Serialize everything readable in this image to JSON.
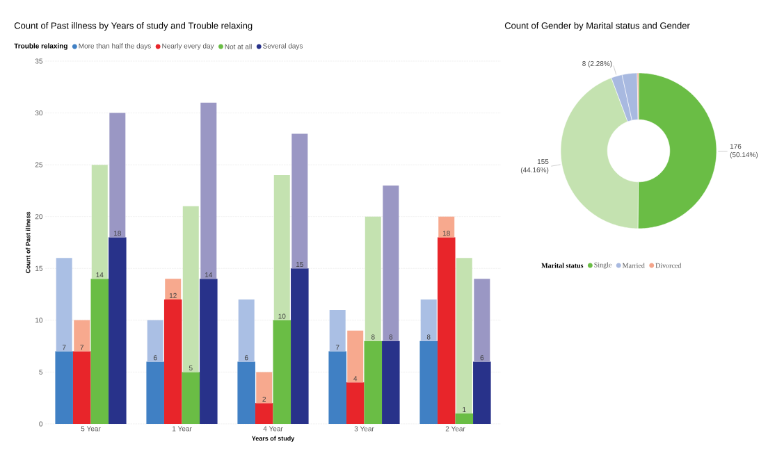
{
  "chart_data": [
    {
      "type": "bar",
      "title": "Count of Past illness by Years of study and Trouble relaxing",
      "xlabel": "Years of study",
      "ylabel": "Count of Past illness",
      "legend_title": "Trouble relaxing",
      "legend": "top left",
      "grid": "y",
      "categories": [
        "5 Year",
        "1 Year",
        "4 Year",
        "3 Year",
        "2 Year"
      ],
      "ylim": [
        0,
        35
      ],
      "yticks": [
        0,
        5,
        10,
        15,
        20,
        25,
        30,
        35
      ],
      "series": [
        {
          "name": "More than half the days",
          "color": "#4080c4",
          "values": [
            7,
            6,
            6,
            7,
            8
          ],
          "value_labels": [
            "7",
            "6",
            "6",
            "7",
            "8"
          ]
        },
        {
          "color": "#aabfe4",
          "values": [
            9,
            4,
            6,
            4,
            4
          ],
          "base": [
            7,
            6,
            6,
            7,
            8
          ]
        },
        {
          "name": "Nearly every day",
          "color": "#e8252a",
          "values": [
            7,
            12,
            2,
            4,
            18
          ],
          "value_labels": [
            "7",
            "12",
            "2",
            "4",
            "18"
          ]
        },
        {
          "color": "#f7a98e",
          "values": [
            3,
            2,
            3,
            5,
            2
          ],
          "base": [
            7,
            12,
            2,
            4,
            18
          ]
        },
        {
          "name": "Not at all",
          "color": "#6abd45",
          "values": [
            14,
            5,
            10,
            8,
            1
          ],
          "value_labels": [
            "14",
            "5",
            "10",
            "8",
            "1"
          ]
        },
        {
          "color": "#c4e2b0",
          "values": [
            11,
            16,
            14,
            12,
            15
          ],
          "base": [
            14,
            5,
            10,
            8,
            1
          ]
        },
        {
          "name": "Several days",
          "color": "#28328a",
          "values": [
            18,
            14,
            15,
            8,
            6
          ],
          "value_labels": [
            "18",
            "14",
            "15",
            "8",
            "6"
          ]
        },
        {
          "color": "#9a97c4",
          "values": [
            12,
            17,
            13,
            15,
            8
          ],
          "base": [
            18,
            14,
            15,
            8,
            6
          ]
        }
      ]
    },
    {
      "type": "donut",
      "title": "Count of Gender by Marital status and Gender",
      "legend_title": "Marital status",
      "legend": "bottom",
      "categories": [
        "Single",
        null,
        "Married",
        null,
        "Divorced"
      ],
      "values": [
        176,
        155,
        8,
        11,
        1
      ],
      "colors": [
        "#6abd45",
        "#c4e2b0",
        "#a8b9e0",
        "#a8b9e0",
        "#f4a48a"
      ],
      "value_labels": [
        "176 (50.14%)",
        "155 (44.16%)",
        "8 (2.28%)",
        null,
        null
      ]
    }
  ]
}
